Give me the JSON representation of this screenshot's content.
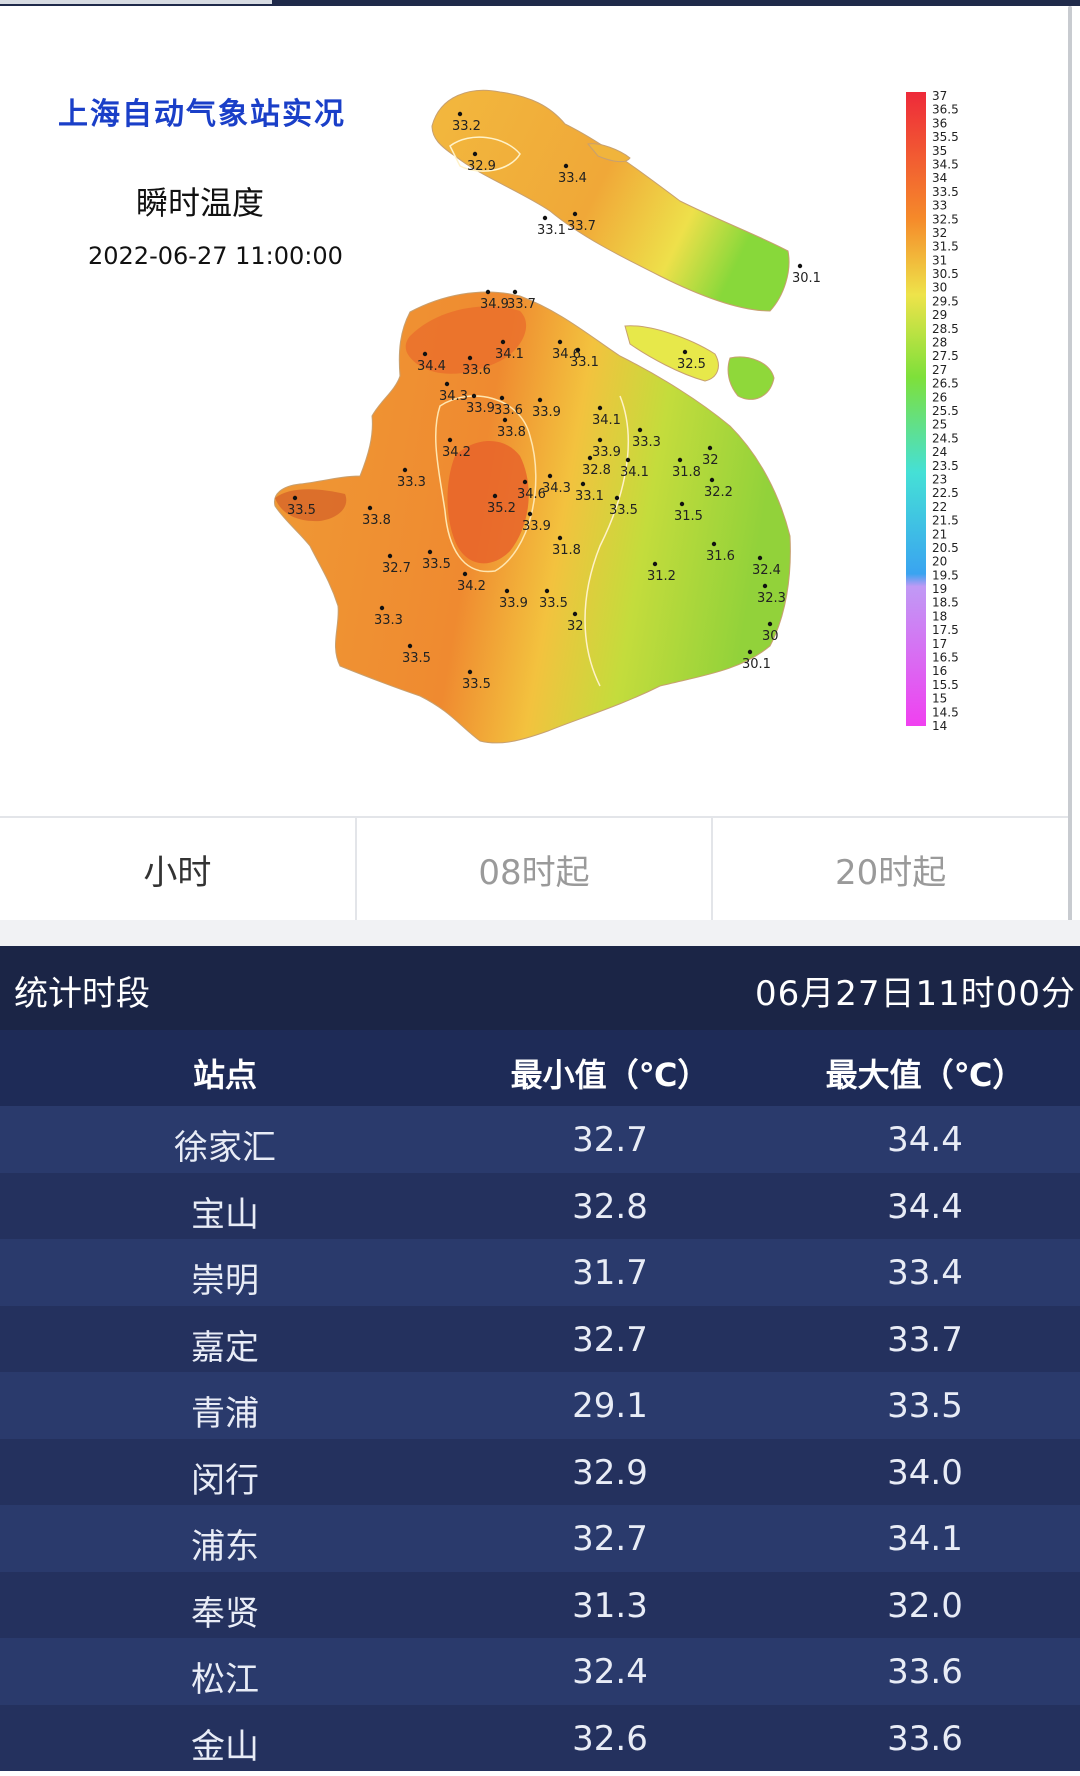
{
  "map": {
    "title": "上海自动气象站实况",
    "subtitle": "瞬时温度",
    "datetime": "2022-06-27 11:00:00",
    "legend_ticks": [
      "37",
      "36.5",
      "36",
      "35.5",
      "35",
      "34.5",
      "34",
      "33.5",
      "33",
      "32.5",
      "32",
      "31.5",
      "31",
      "30.5",
      "30",
      "29.5",
      "29",
      "28.5",
      "28",
      "27.5",
      "27",
      "26.5",
      "26",
      "25.5",
      "25",
      "24.5",
      "24",
      "23.5",
      "23",
      "22.5",
      "22",
      "21.5",
      "21",
      "20.5",
      "20",
      "19.5",
      "19",
      "18.5",
      "18",
      "17.5",
      "17",
      "16.5",
      "16",
      "15.5",
      "15",
      "14.5",
      "14"
    ],
    "stations": [
      "33.2",
      "32.9",
      "33.4",
      "33.1",
      "33.7",
      "30.1",
      "34.9",
      "33.7",
      "34.4",
      "33.6",
      "34.1",
      "34.6",
      "33.1",
      "32.5",
      "34.3",
      "33.9",
      "33.6",
      "33.9",
      "34.1",
      "33.3",
      "33.8",
      "34.2",
      "33.9",
      "34.1",
      "31.8",
      "32",
      "33.3",
      "32.8",
      "34.6",
      "34.3",
      "33.1",
      "32.2",
      "33.5",
      "35.2",
      "33.5",
      "33.9",
      "31.5",
      "33.8",
      "31.8",
      "31.6",
      "32.7",
      "33.5",
      "31.2",
      "32.4",
      "34.2",
      "33.9",
      "33.5",
      "32.3",
      "33.3",
      "32",
      "30",
      "33.5",
      "30.1",
      "33.5"
    ]
  },
  "tabs": [
    {
      "label": "小时",
      "active": true
    },
    {
      "label": "08时起",
      "active": false
    },
    {
      "label": "20时起",
      "active": false
    }
  ],
  "stats": {
    "period_label": "统计时段",
    "period_value": "06月27日11时00分",
    "columns": [
      "站点",
      "最小值（℃）",
      "最大值（℃）"
    ],
    "rows": [
      [
        "徐家汇",
        "32.7",
        "34.4"
      ],
      [
        "宝山",
        "32.8",
        "34.4"
      ],
      [
        "崇明",
        "31.7",
        "33.4"
      ],
      [
        "嘉定",
        "32.7",
        "33.7"
      ],
      [
        "青浦",
        "29.1",
        "33.5"
      ],
      [
        "闵行",
        "32.9",
        "34.0"
      ],
      [
        "浦东",
        "32.7",
        "34.1"
      ],
      [
        "奉贤",
        "31.3",
        "32.0"
      ],
      [
        "松江",
        "32.4",
        "33.6"
      ],
      [
        "金山",
        "32.6",
        "33.6"
      ]
    ]
  },
  "colors": {
    "hot": "#e8642a",
    "warm": "#f39a2e",
    "mild": "#f2c040",
    "cool": "#9ed43a",
    "header_bg": "#1b2546",
    "table_bg": "#2a3a6c"
  }
}
